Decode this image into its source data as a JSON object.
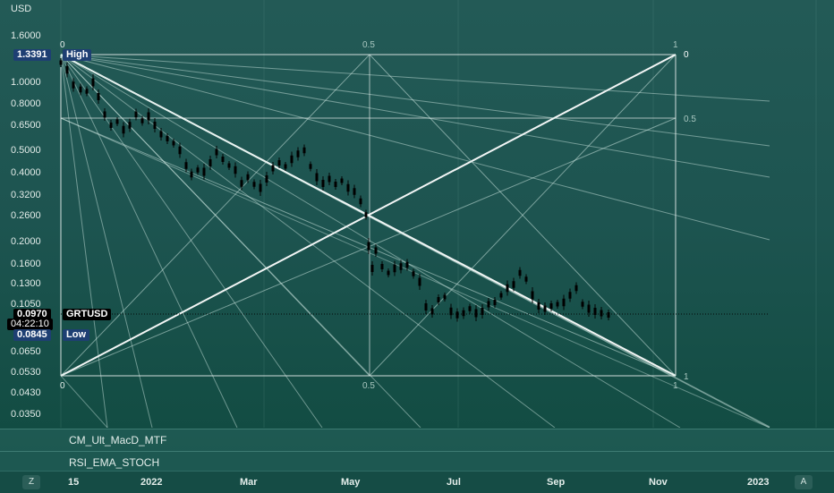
{
  "currency_label": "USD",
  "price_axis": [
    "1.6000",
    "1.0000",
    "0.8000",
    "0.6500",
    "0.5000",
    "0.4000",
    "0.3200",
    "0.2600",
    "0.2000",
    "0.1600",
    "0.1300",
    "0.1050",
    "0.0650",
    "0.0530",
    "0.0430",
    "0.0350"
  ],
  "tags": {
    "high_value": "1.3391",
    "high_label": "High",
    "last_value": "0.0970",
    "symbol": "GRTUSD",
    "countdown": "04:22:10",
    "low_value": "0.0845",
    "low_label": "Low"
  },
  "fib_labels": {
    "top_left": "0",
    "top_mid": "0.5",
    "top_right": "1",
    "right_top": "0",
    "right_mid": "0.5",
    "right_bottom": "1",
    "bottom_left": "0",
    "bottom_mid": "0.5",
    "bottom_right": "1"
  },
  "indicators": [
    "CM_Ult_MacD_MTF",
    "RSI_EMA_STOCH"
  ],
  "time_axis": [
    "15",
    "2022",
    "Mar",
    "May",
    "Jul",
    "Sep",
    "Nov",
    "2023"
  ],
  "buttons": {
    "left": "Z",
    "right": "A"
  },
  "colors": {
    "line": "#ffffff",
    "candle": "#000000",
    "high_tag": "#1e3f73",
    "last_tag": "#000000"
  }
}
